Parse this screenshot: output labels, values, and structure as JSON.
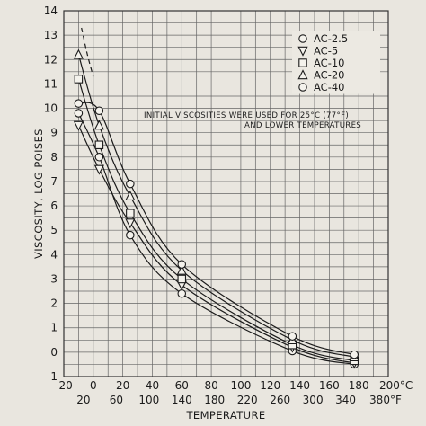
{
  "chart_data": {
    "type": "line",
    "title": "",
    "xlabel": "TEMPERATURE",
    "ylabel": "VISCOSITY, LOG POISES",
    "xlim_c": [
      -20,
      200
    ],
    "ylim": [
      -1,
      14
    ],
    "x_ticks_c": [
      "-20",
      "0",
      "20",
      "40",
      "60",
      "80",
      "100",
      "120",
      "140",
      "160",
      "180",
      "200°C"
    ],
    "x_ticks_f": [
      "20",
      "60",
      "100",
      "140",
      "180",
      "220",
      "260",
      "300",
      "340",
      "380°F"
    ],
    "y_ticks": [
      "-1",
      "0",
      "1",
      "2",
      "3",
      "4",
      "5",
      "6",
      "7",
      "8",
      "9",
      "10",
      "11",
      "12",
      "13",
      "14"
    ],
    "grid": true,
    "legend_position": "top-right",
    "annotation": [
      "INITIAL VISCOSITIES WERE USED FOR 25°C (77°F)",
      "AND LOWER TEMPERATURES"
    ],
    "x": [
      -10,
      4,
      25,
      60,
      135,
      177
    ],
    "series": [
      {
        "name": "AC-2.5",
        "marker": "circle",
        "values": [
          9.8,
          8.0,
          4.8,
          2.4,
          0.05,
          -0.5
        ]
      },
      {
        "name": "AC-5",
        "marker": "tri-down",
        "values": [
          9.3,
          7.5,
          5.3,
          2.75,
          0.2,
          -0.45
        ]
      },
      {
        "name": "AC-10",
        "marker": "square",
        "values": [
          11.2,
          8.5,
          5.7,
          3.0,
          0.3,
          -0.35
        ]
      },
      {
        "name": "AC-20",
        "marker": "tri-up",
        "values": [
          12.2,
          9.3,
          6.4,
          3.35,
          0.5,
          -0.2
        ]
      },
      {
        "name": "AC-40",
        "marker": "circle",
        "values": [
          10.2,
          9.9,
          6.9,
          3.6,
          0.65,
          -0.1
        ]
      }
    ],
    "extrapolated_curve": {
      "style": "dashed",
      "x": [
        -8,
        -4,
        0
      ],
      "y": [
        13.3,
        12.2,
        11.3
      ]
    }
  }
}
